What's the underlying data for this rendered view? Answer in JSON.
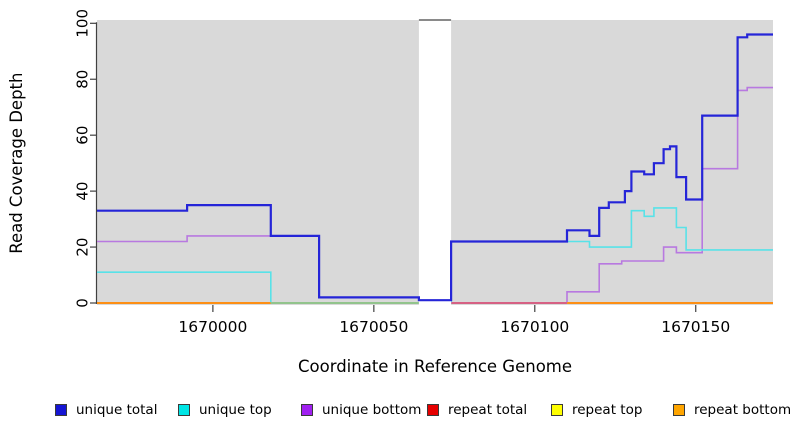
{
  "figure": {
    "xlabel": "Coordinate in Reference Genome",
    "ylabel": "Read Coverage Depth"
  },
  "chart_data": {
    "type": "line",
    "subtype": "step",
    "title": "",
    "xlabel": "Coordinate in Reference Genome",
    "ylabel": "Read Coverage Depth",
    "xlim": [
      1669964,
      1670174
    ],
    "ylim": [
      0,
      100
    ],
    "xticks": [
      1670000,
      1670050,
      1670100,
      1670150
    ],
    "yticks": [
      0,
      20,
      40,
      60,
      80,
      100
    ],
    "grid": false,
    "legend_position": "bottom",
    "panel_bg": "#d9d9d9",
    "axis_color": "#404040",
    "masked_region": {
      "x0": 1670064,
      "x1": 1670074,
      "fill": "#ffffff",
      "top_edge_color": "#8a8a8a"
    },
    "series": [
      {
        "name": "unique total",
        "color": "#2525d8",
        "legend_color": "#1515d3",
        "width": 2.2,
        "points": [
          [
            1669964,
            33
          ],
          [
            1669992,
            35
          ],
          [
            1670018,
            24
          ],
          [
            1670033,
            2
          ],
          [
            1670064,
            1
          ],
          [
            1670074,
            22
          ],
          [
            1670110,
            26
          ],
          [
            1670117,
            24
          ],
          [
            1670120,
            34
          ],
          [
            1670123,
            36
          ],
          [
            1670128,
            40
          ],
          [
            1670130,
            47
          ],
          [
            1670134,
            46
          ],
          [
            1670137,
            50
          ],
          [
            1670140,
            55
          ],
          [
            1670142,
            56
          ],
          [
            1670144,
            45
          ],
          [
            1670147,
            37
          ],
          [
            1670152,
            67
          ],
          [
            1670163,
            95
          ],
          [
            1670166,
            96
          ],
          [
            1670174,
            96
          ]
        ]
      },
      {
        "name": "unique top",
        "color": "#58e2e8",
        "legend_color": "#00e5e5",
        "width": 1.6,
        "points": [
          [
            1669964,
            11
          ],
          [
            1670018,
            0
          ],
          [
            1670074,
            22
          ],
          [
            1670117,
            20
          ],
          [
            1670130,
            33
          ],
          [
            1670134,
            31
          ],
          [
            1670137,
            34
          ],
          [
            1670144,
            27
          ],
          [
            1670147,
            19
          ],
          [
            1670174,
            19
          ]
        ]
      },
      {
        "name": "unique bottom",
        "color": "#b879e0",
        "legend_color": "#a020f0",
        "width": 1.6,
        "points": [
          [
            1669964,
            22
          ],
          [
            1669992,
            24
          ],
          [
            1670033,
            2
          ],
          [
            1670064,
            1
          ],
          [
            1670074,
            0
          ],
          [
            1670110,
            4
          ],
          [
            1670120,
            14
          ],
          [
            1670127,
            15
          ],
          [
            1670140,
            20
          ],
          [
            1670144,
            18
          ],
          [
            1670152,
            48
          ],
          [
            1670163,
            76
          ],
          [
            1670166,
            77
          ],
          [
            1670174,
            77
          ]
        ]
      },
      {
        "name": "repeat total",
        "color": "#e60000",
        "legend_color": "#e60000",
        "width": 1.6,
        "points": [
          [
            1669964,
            0
          ],
          [
            1670174,
            0
          ]
        ]
      },
      {
        "name": "repeat top",
        "color": "#ffff00",
        "legend_color": "#ffff00",
        "width": 1.6,
        "points": [
          [
            1669964,
            0
          ],
          [
            1670174,
            0
          ]
        ]
      },
      {
        "name": "repeat bottom",
        "color": "#ffa500",
        "legend_color": "#ffa500",
        "width": 1.8,
        "points": [
          [
            1669964,
            0
          ],
          [
            1670174,
            0
          ]
        ]
      }
    ],
    "baseline_segments": [
      {
        "x0": 1669964,
        "x1": 1670018,
        "color": "#ff9415"
      },
      {
        "x0": 1670018,
        "x1": 1670064,
        "color": "#8fc98f"
      },
      {
        "x0": 1670074,
        "x1": 1670110,
        "color": "#d75f87"
      },
      {
        "x0": 1670110,
        "x1": 1670174,
        "color": "#ff9415"
      }
    ]
  }
}
